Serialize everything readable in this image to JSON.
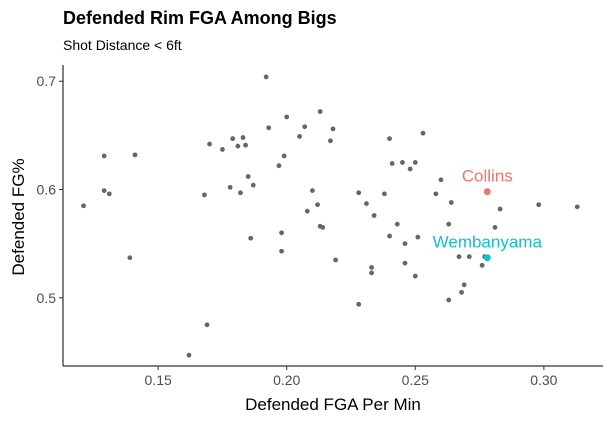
{
  "chart_data": {
    "type": "scatter",
    "title": "Defended Rim FGA Among Bigs",
    "subtitle": "Shot Distance < 6ft",
    "xlabel": "Defended FGA Per Min",
    "ylabel": "Defended FG%",
    "xlim": [
      0.113,
      0.323
    ],
    "ylim": [
      0.437,
      0.715
    ],
    "xticks": [
      0.15,
      0.2,
      0.25,
      0.3
    ],
    "xtick_labels": [
      "0.15",
      "0.20",
      "0.25",
      "0.30"
    ],
    "yticks": [
      0.5,
      0.6,
      0.7
    ],
    "ytick_labels": [
      "0.5",
      "0.6",
      "0.7"
    ],
    "grid": false,
    "point_color": "#666666",
    "points": [
      [
        0.121,
        0.585
      ],
      [
        0.129,
        0.631
      ],
      [
        0.129,
        0.599
      ],
      [
        0.131,
        0.596
      ],
      [
        0.139,
        0.537
      ],
      [
        0.141,
        0.632
      ],
      [
        0.162,
        0.447
      ],
      [
        0.168,
        0.595
      ],
      [
        0.169,
        0.475
      ],
      [
        0.17,
        0.642
      ],
      [
        0.175,
        0.637
      ],
      [
        0.178,
        0.602
      ],
      [
        0.179,
        0.647
      ],
      [
        0.181,
        0.64
      ],
      [
        0.182,
        0.597
      ],
      [
        0.183,
        0.648
      ],
      [
        0.184,
        0.641
      ],
      [
        0.185,
        0.612
      ],
      [
        0.186,
        0.555
      ],
      [
        0.187,
        0.604
      ],
      [
        0.192,
        0.704
      ],
      [
        0.193,
        0.657
      ],
      [
        0.197,
        0.622
      ],
      [
        0.198,
        0.56
      ],
      [
        0.198,
        0.543
      ],
      [
        0.199,
        0.631
      ],
      [
        0.2,
        0.667
      ],
      [
        0.205,
        0.649
      ],
      [
        0.207,
        0.658
      ],
      [
        0.208,
        0.58
      ],
      [
        0.21,
        0.599
      ],
      [
        0.212,
        0.586
      ],
      [
        0.213,
        0.672
      ],
      [
        0.213,
        0.566
      ],
      [
        0.214,
        0.565
      ],
      [
        0.217,
        0.645
      ],
      [
        0.218,
        0.656
      ],
      [
        0.219,
        0.535
      ],
      [
        0.228,
        0.597
      ],
      [
        0.228,
        0.494
      ],
      [
        0.231,
        0.587
      ],
      [
        0.233,
        0.523
      ],
      [
        0.233,
        0.528
      ],
      [
        0.234,
        0.576
      ],
      [
        0.238,
        0.596
      ],
      [
        0.24,
        0.557
      ],
      [
        0.24,
        0.647
      ],
      [
        0.241,
        0.624
      ],
      [
        0.243,
        0.568
      ],
      [
        0.245,
        0.625
      ],
      [
        0.246,
        0.532
      ],
      [
        0.246,
        0.55
      ],
      [
        0.248,
        0.619
      ],
      [
        0.25,
        0.625
      ],
      [
        0.25,
        0.52
      ],
      [
        0.251,
        0.556
      ],
      [
        0.253,
        0.652
      ],
      [
        0.258,
        0.596
      ],
      [
        0.26,
        0.609
      ],
      [
        0.263,
        0.498
      ],
      [
        0.263,
        0.568
      ],
      [
        0.264,
        0.588
      ],
      [
        0.267,
        0.538
      ],
      [
        0.268,
        0.505
      ],
      [
        0.269,
        0.512
      ],
      [
        0.271,
        0.538
      ],
      [
        0.276,
        0.53
      ],
      [
        0.277,
        0.538
      ],
      [
        0.281,
        0.565
      ],
      [
        0.283,
        0.582
      ],
      [
        0.298,
        0.586
      ],
      [
        0.313,
        0.584
      ]
    ],
    "highlighted": [
      {
        "label": "Collins",
        "x": 0.278,
        "y": 0.598,
        "color": "#f0746e"
      },
      {
        "label": "Wembanyama",
        "x": 0.278,
        "y": 0.537,
        "color": "#18bfc4"
      }
    ]
  }
}
